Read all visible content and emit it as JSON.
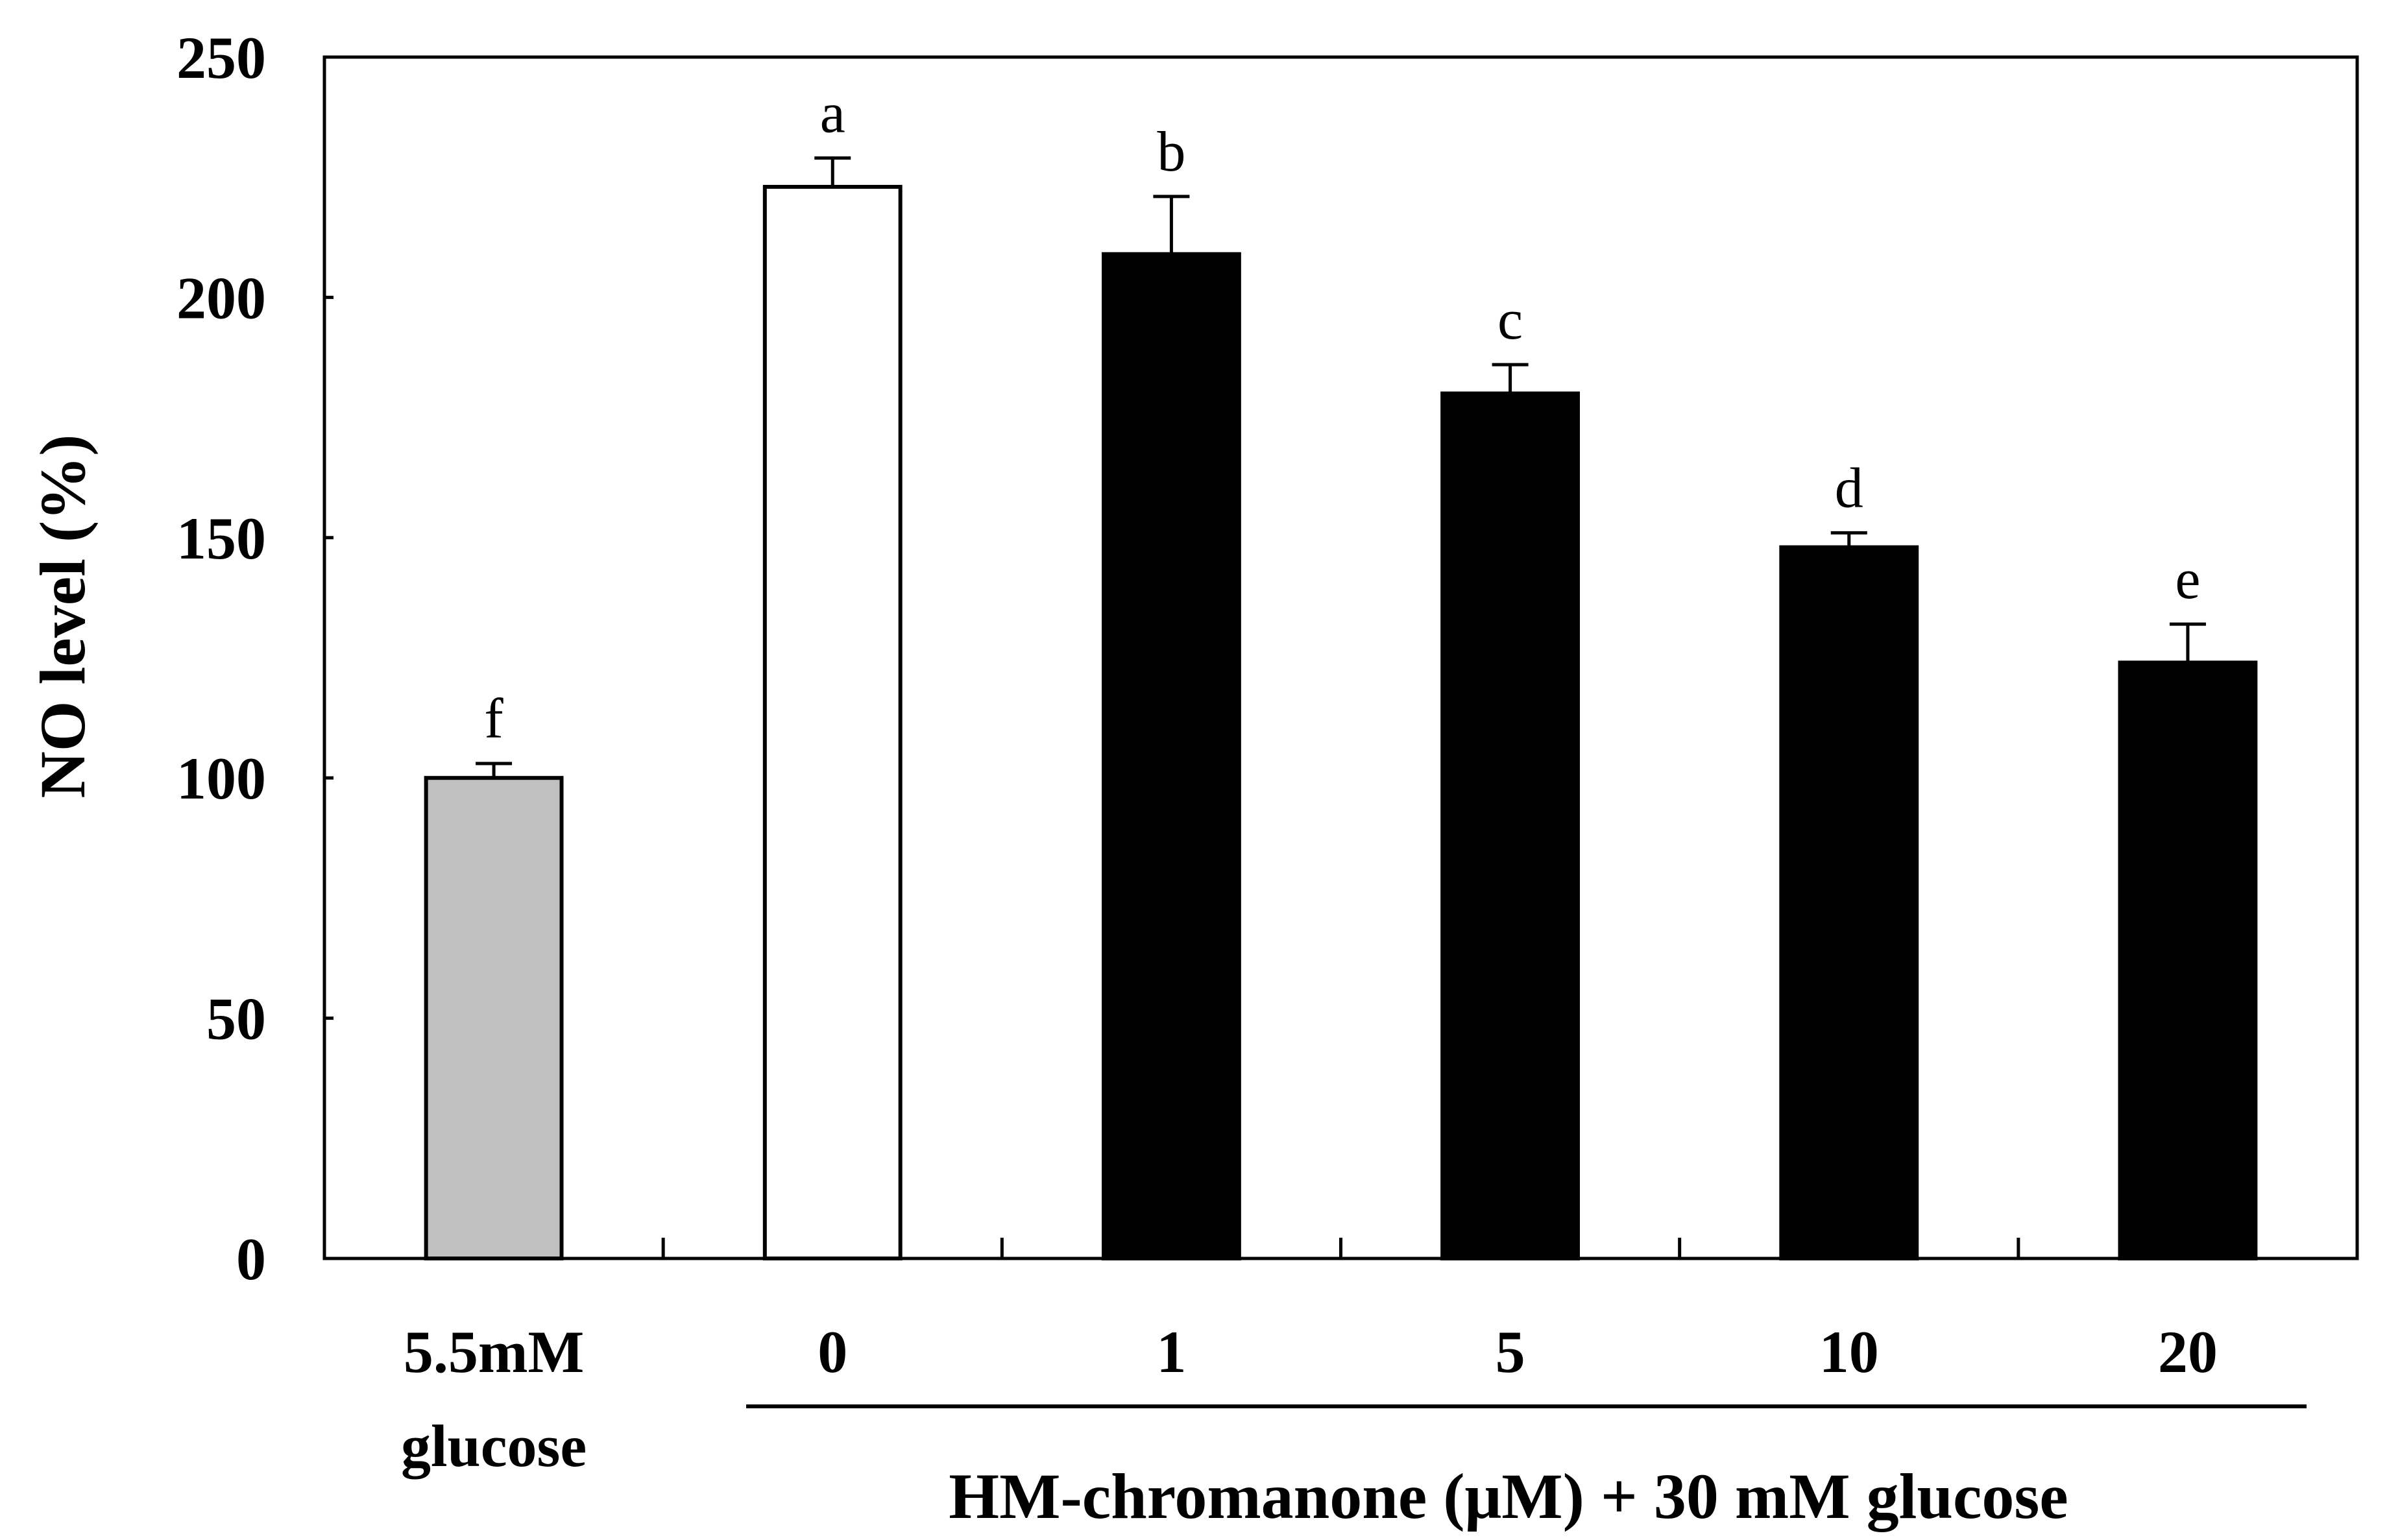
{
  "chart_data": {
    "type": "bar",
    "title": "",
    "xlabel": "HM-chromanone (μM) + 30 mM glucose",
    "ylabel": "NO level (%)",
    "ylim": [
      0,
      250
    ],
    "yticks": [
      0,
      50,
      100,
      150,
      200,
      250
    ],
    "categories": [
      {
        "line1": "5.5mM",
        "line2": "glucose"
      },
      {
        "line1": "0",
        "line2": ""
      },
      {
        "line1": "1",
        "line2": ""
      },
      {
        "line1": "5",
        "line2": ""
      },
      {
        "line1": "10",
        "line2": ""
      },
      {
        "line1": "20",
        "line2": ""
      }
    ],
    "values": [
      100,
      223,
      209,
      180,
      148,
      124
    ],
    "errors": [
      3,
      6,
      12,
      6,
      3,
      8
    ],
    "significance": [
      "f",
      "a",
      "b",
      "c",
      "d",
      "e"
    ],
    "colors": [
      "#c0c0c0",
      "#ffffff",
      "#000000",
      "#000000",
      "#000000",
      "#000000"
    ],
    "group_label": "HM-chromanone (μM) + 30 mM glucose"
  }
}
